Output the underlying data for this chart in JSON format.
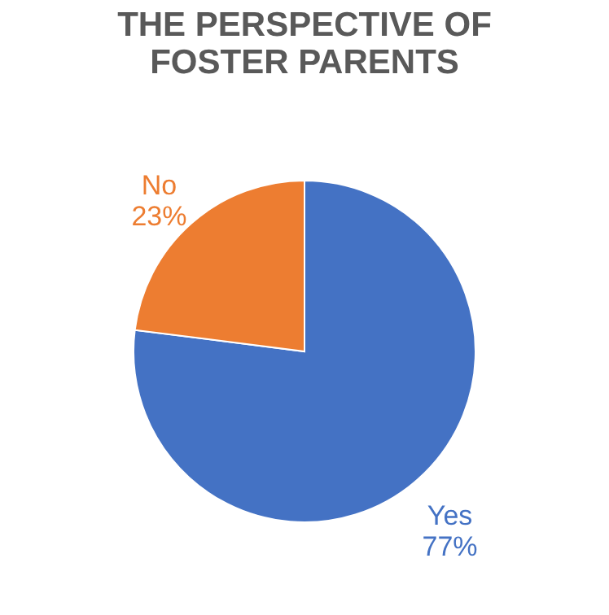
{
  "chart_data": {
    "type": "pie",
    "title": [
      "THE PERSPECTIVE OF",
      "FOSTER PARENTS"
    ],
    "categories": [
      "Yes",
      "No"
    ],
    "values": [
      77,
      23
    ],
    "colors": [
      "#4472c4",
      "#ed7d31"
    ],
    "value_labels": [
      "77%",
      "23%"
    ],
    "legend": false
  }
}
